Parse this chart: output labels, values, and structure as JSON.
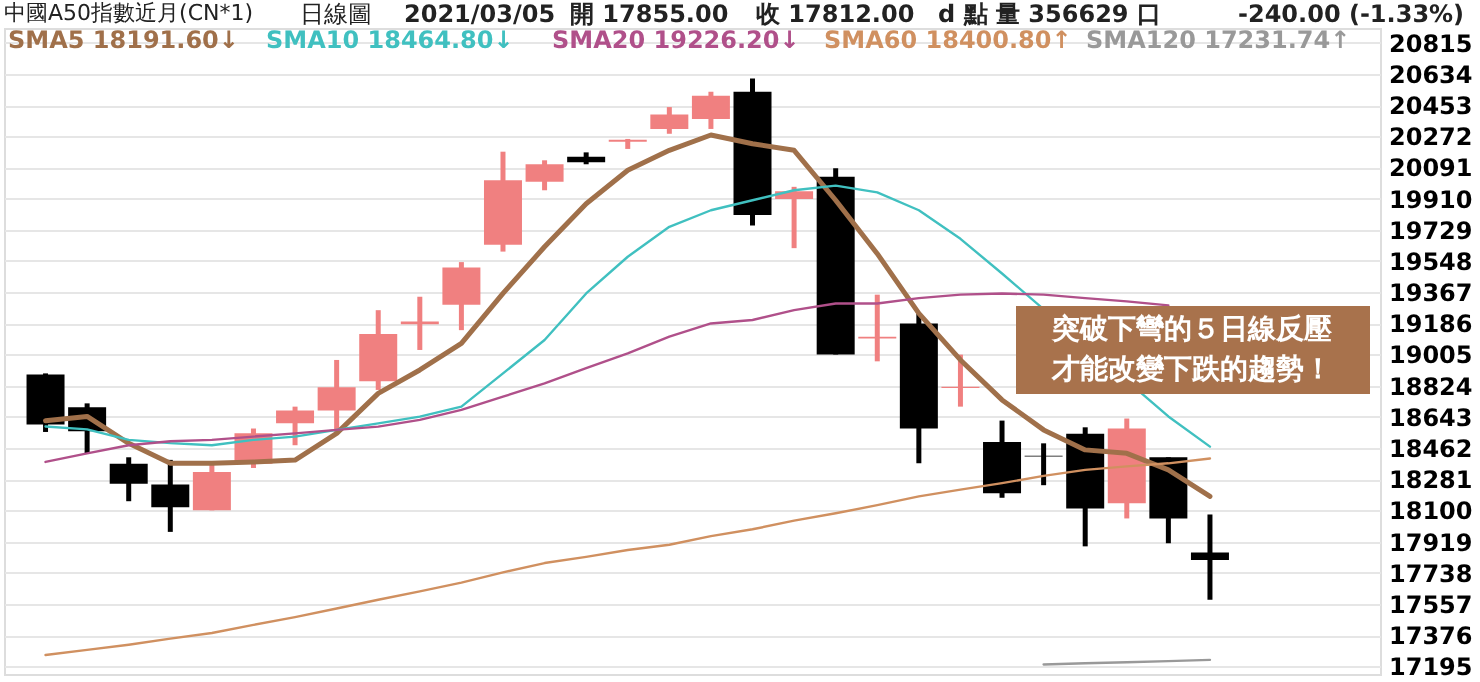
{
  "chart_data": {
    "type": "candlestick",
    "annotations": [
      "中國A50指數近月(CN*1)",
      "日線圖",
      "2021/03/05",
      "開 17855.00",
      "收 17812.00",
      "d 點",
      "量 356629 口",
      "-240.00 (-1.33%)",
      "突破下彎的５日線反壓",
      "才能改變下跌的趨勢！"
    ],
    "categories": [
      null,
      null,
      null,
      null,
      null,
      null,
      null,
      null,
      null,
      null,
      null,
      null,
      null,
      null,
      null,
      null,
      null,
      null,
      null,
      null,
      null,
      null,
      null,
      null,
      null,
      null,
      null,
      null,
      null
    ],
    "ohlc": [
      [
        18888,
        18895,
        18555,
        18598
      ],
      [
        18698,
        18721,
        18431,
        18559
      ],
      [
        18370,
        18408,
        18153,
        18254
      ],
      [
        18250,
        18393,
        17975,
        18118
      ],
      [
        18100,
        18385,
        18100,
        18323
      ],
      [
        18370,
        18575,
        18346,
        18547
      ],
      [
        18605,
        18702,
        18478,
        18679
      ],
      [
        18679,
        18973,
        18540,
        18814
      ],
      [
        18849,
        19262,
        18799,
        19123
      ],
      [
        19181,
        19340,
        19031,
        19196
      ],
      [
        19294,
        19541,
        19146,
        19510
      ],
      [
        19642,
        20182,
        19602,
        20016
      ],
      [
        20007,
        20132,
        19958,
        20109
      ],
      [
        20152,
        20178,
        20109,
        20120
      ],
      [
        20240,
        20256,
        20198,
        20252
      ],
      [
        20314,
        20441,
        20286,
        20398
      ],
      [
        20372,
        20530,
        20314,
        20506
      ],
      [
        20530,
        20607,
        19753,
        19815
      ],
      [
        19908,
        19978,
        19622,
        19953
      ],
      [
        20036,
        20086,
        19004,
        19004
      ],
      [
        19097,
        19352,
        18965,
        19108
      ],
      [
        19185,
        19243,
        18373,
        18575
      ],
      [
        18810,
        19004,
        18702,
        18818
      ],
      [
        18497,
        18621,
        18173,
        18199
      ],
      [
        18417,
        18489,
        18246,
        18413
      ],
      [
        18544,
        18582,
        17891,
        18111
      ],
      [
        18141,
        18633,
        18053,
        18575
      ],
      [
        18408,
        18408,
        17909,
        18053
      ],
      [
        17855,
        18076,
        17581,
        17812
      ]
    ],
    "colors": [
      "#000000",
      "#000000",
      "#000000",
      "#000000",
      "#f08080",
      "#f08080",
      "#f08080",
      "#f08080",
      "#f08080",
      "#f08080",
      "#f08080",
      "#f08080",
      "#f08080",
      "#000000",
      "#f08080",
      "#f08080",
      "#f08080",
      "#000000",
      "#f08080",
      "#000000",
      "#f08080",
      "#000000",
      "#f08080",
      "#000000",
      "#000000",
      "#000000",
      "#f08080",
      "#000000",
      "#000000"
    ],
    "series": [
      {
        "name": "SMA5 18191.60↓",
        "type": "line",
        "color": "#a0704a",
        "values": [
          18620,
          18645,
          18489,
          18373,
          18373,
          18380,
          18392,
          18547,
          18779,
          18915,
          19069,
          19359,
          19630,
          19880,
          20074,
          20190,
          20279,
          20228,
          20190,
          19900,
          19590,
          19243,
          18973,
          18741,
          18567,
          18451,
          18431,
          18335,
          18181
        ]
      },
      {
        "name": "SMA10 18464.80↓",
        "type": "line",
        "color": "#40c0c0",
        "values": [
          18587,
          18570,
          18509,
          18490,
          18478,
          18509,
          18528,
          18567,
          18605,
          18644,
          18702,
          18895,
          19089,
          19359,
          19572,
          19746,
          19842,
          19900,
          19958,
          19985,
          19946,
          19842,
          19676,
          19475,
          null,
          null,
          null,
          18645,
          18470
        ]
      },
      {
        "name": "SMA20 19226.20↓",
        "type": "line",
        "color": "#b0508a",
        "values": [
          18381,
          18431,
          18478,
          18501,
          18509,
          18528,
          18547,
          18567,
          18586,
          18625,
          18683,
          18760,
          18837,
          18926,
          19011,
          19108,
          19185,
          19205,
          19262,
          19301,
          19301,
          19332,
          19352,
          19359,
          19352,
          19332,
          19313,
          19290,
          null
        ]
      },
      {
        "name": "SMA60 18400.80↑",
        "type": "line",
        "color": "#d09060",
        "values": [
          17260,
          17290,
          17320,
          17355,
          17388,
          17435,
          17480,
          17530,
          17581,
          17630,
          17680,
          17740,
          17794,
          17830,
          17870,
          17900,
          17950,
          17990,
          18040,
          18083,
          18130,
          18181,
          18220,
          18258,
          18300,
          18335,
          18355,
          18373,
          18401
        ]
      },
      {
        "name": "SMA120 17231.74↑",
        "type": "line",
        "color": "#999999",
        "values": [
          null,
          null,
          null,
          null,
          null,
          null,
          null,
          null,
          null,
          null,
          null,
          null,
          null,
          null,
          null,
          null,
          null,
          null,
          null,
          null,
          null,
          null,
          null,
          null,
          17205,
          17212,
          17218,
          17225,
          17232
        ]
      }
    ],
    "ylim": [
      17150,
      20900
    ],
    "yticks": [
      17195,
      17376,
      17557,
      17738,
      17919,
      18100,
      18281,
      18462,
      18643,
      18824,
      19005,
      19186,
      19367,
      19548,
      19729,
      19910,
      20091,
      20272,
      20453,
      20634,
      20815
    ],
    "grid": "y",
    "legend": "top left",
    "tick_labels": "y"
  }
}
